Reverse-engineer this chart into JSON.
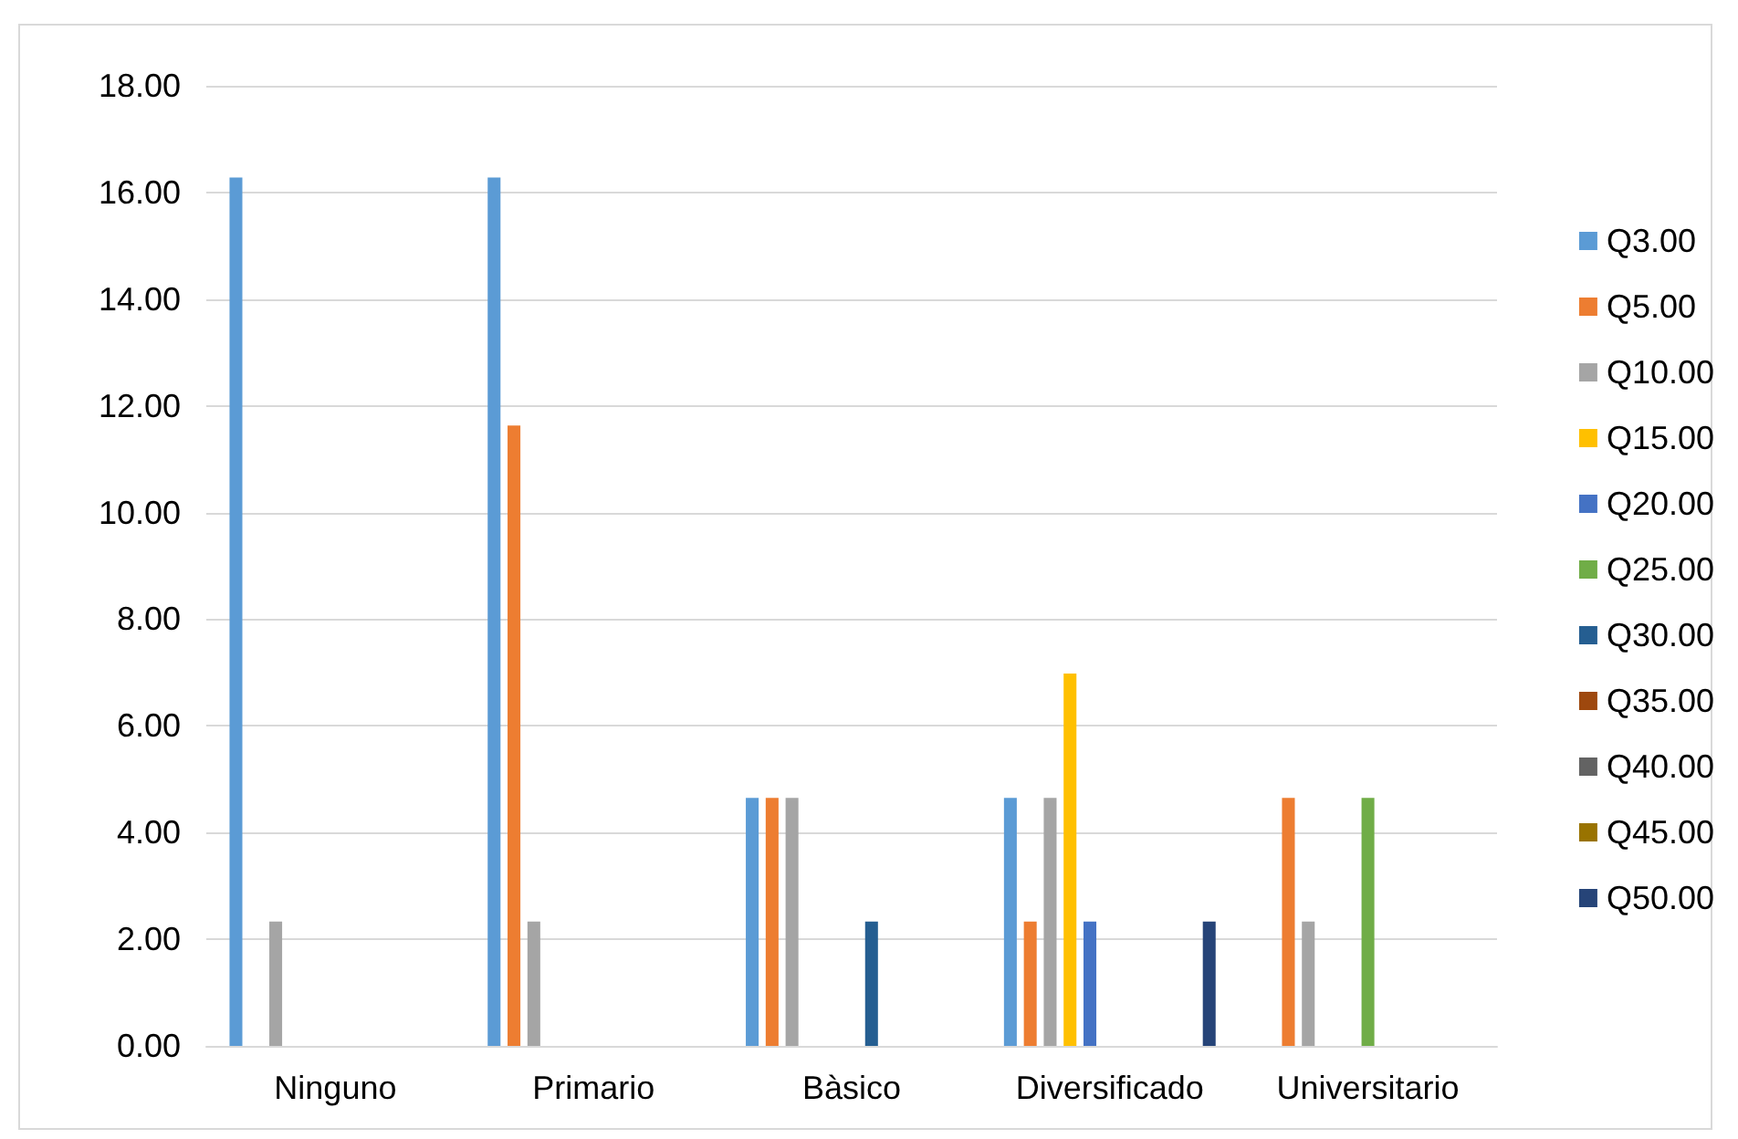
{
  "chart_data": {
    "type": "bar",
    "categories": [
      "Ninguno",
      "Primario",
      "Bàsico",
      "Diversificado",
      "Universitario"
    ],
    "series": [
      {
        "name": "Q3.00",
        "color": "#5b9bd5",
        "values": [
          16.28,
          16.28,
          4.65,
          4.65,
          0
        ]
      },
      {
        "name": "Q5.00",
        "color": "#ed7d31",
        "values": [
          0,
          11.63,
          4.65,
          2.33,
          4.65
        ]
      },
      {
        "name": "Q10.00",
        "color": "#a5a5a5",
        "values": [
          2.33,
          2.33,
          4.65,
          4.65,
          2.33
        ]
      },
      {
        "name": "Q15.00",
        "color": "#ffc000",
        "values": [
          0,
          0,
          0,
          6.98,
          0
        ]
      },
      {
        "name": "Q20.00",
        "color": "#4472c4",
        "values": [
          0,
          0,
          0,
          2.33,
          0
        ]
      },
      {
        "name": "Q25.00",
        "color": "#70ad47",
        "values": [
          0,
          0,
          0,
          0,
          4.65
        ]
      },
      {
        "name": "Q30.00",
        "color": "#255e91",
        "values": [
          0,
          0,
          2.33,
          0,
          0
        ]
      },
      {
        "name": "Q35.00",
        "color": "#9e480e",
        "values": [
          0,
          0,
          0,
          0,
          0
        ]
      },
      {
        "name": "Q40.00",
        "color": "#636363",
        "values": [
          0,
          0,
          0,
          0,
          0
        ]
      },
      {
        "name": "Q45.00",
        "color": "#997300",
        "values": [
          0,
          0,
          0,
          0,
          0
        ]
      },
      {
        "name": "Q50.00",
        "color": "#264478",
        "values": [
          0,
          0,
          0,
          2.33,
          0
        ]
      }
    ],
    "ylim": [
      0,
      18
    ],
    "yticks": [
      {
        "value": 0,
        "label": "0.00"
      },
      {
        "value": 2,
        "label": "2.00"
      },
      {
        "value": 4,
        "label": "4.00"
      },
      {
        "value": 6,
        "label": "6.00"
      },
      {
        "value": 8,
        "label": "8.00"
      },
      {
        "value": 10,
        "label": "10.00"
      },
      {
        "value": 12,
        "label": "12.00"
      },
      {
        "value": 14,
        "label": "14.00"
      },
      {
        "value": 16,
        "label": "16.00"
      },
      {
        "value": 18,
        "label": "18.00"
      }
    ],
    "grid": "y",
    "legend": "right"
  }
}
